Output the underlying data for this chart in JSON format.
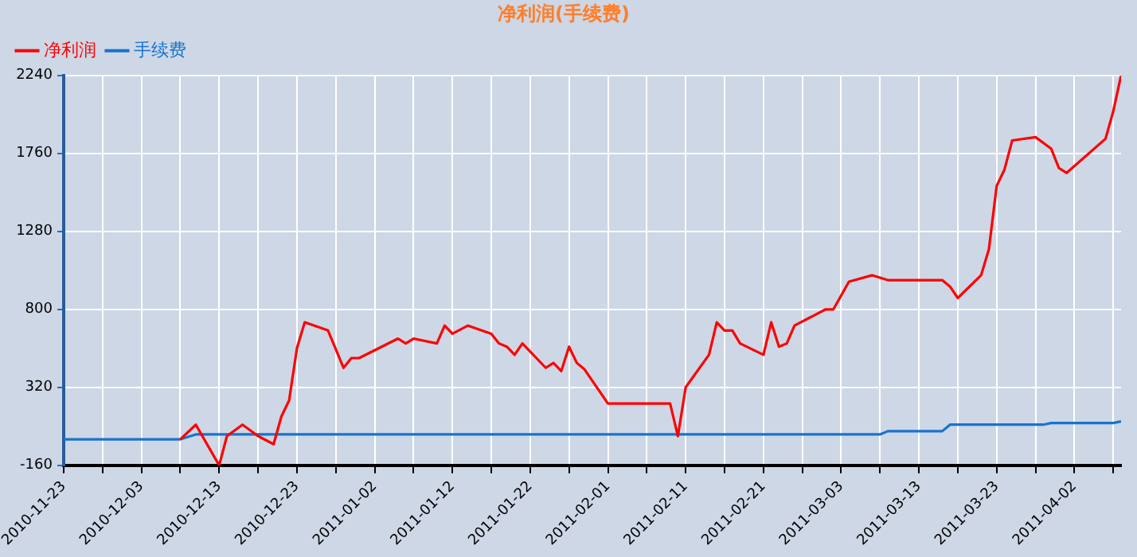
{
  "chart_data": {
    "type": "line",
    "title": "净利润(手续费)",
    "legend": "top left",
    "grid": true,
    "marker": "none",
    "line_style": "solid",
    "xlim": [
      "2010-11-23",
      "2011-04-08"
    ],
    "xticks": [
      {
        "value": "2010-11-23",
        "label": "2010-11-23"
      },
      {
        "value": "2010-11-28",
        "label": null
      },
      {
        "value": "2010-12-03",
        "label": "2010-12-03"
      },
      {
        "value": "2010-12-08",
        "label": null
      },
      {
        "value": "2010-12-13",
        "label": "2010-12-13"
      },
      {
        "value": "2010-12-18",
        "label": null
      },
      {
        "value": "2010-12-23",
        "label": "2010-12-23"
      },
      {
        "value": "2010-12-28",
        "label": null
      },
      {
        "value": "2011-01-02",
        "label": "2011-01-02"
      },
      {
        "value": "2011-01-07",
        "label": null
      },
      {
        "value": "2011-01-12",
        "label": "2011-01-12"
      },
      {
        "value": "2011-01-17",
        "label": null
      },
      {
        "value": "2011-01-22",
        "label": "2011-01-22"
      },
      {
        "value": "2011-01-27",
        "label": null
      },
      {
        "value": "2011-02-01",
        "label": "2011-02-01"
      },
      {
        "value": "2011-02-06",
        "label": null
      },
      {
        "value": "2011-02-11",
        "label": "2011-02-11"
      },
      {
        "value": "2011-02-16",
        "label": null
      },
      {
        "value": "2011-02-21",
        "label": "2011-02-21"
      },
      {
        "value": "2011-02-26",
        "label": null
      },
      {
        "value": "2011-03-03",
        "label": "2011-03-03"
      },
      {
        "value": "2011-03-08",
        "label": null
      },
      {
        "value": "2011-03-13",
        "label": "2011-03-13"
      },
      {
        "value": "2011-03-18",
        "label": null
      },
      {
        "value": "2011-03-23",
        "label": "2011-03-23"
      },
      {
        "value": "2011-03-28",
        "label": null
      },
      {
        "value": "2011-04-02",
        "label": "2011-04-02"
      },
      {
        "value": "2011-04-07",
        "label": null
      }
    ],
    "ylim": [
      -160,
      2240
    ],
    "yticks": [
      -160,
      320,
      800,
      1280,
      1760,
      2240
    ],
    "series": [
      {
        "name": "净利润",
        "color": "#ff0000",
        "x": [
          "2010-12-08",
          "2010-12-10",
          "2010-12-13",
          "2010-12-14",
          "2010-12-16",
          "2010-12-18",
          "2010-12-20",
          "2010-12-21",
          "2010-12-22",
          "2010-12-23",
          "2010-12-24",
          "2010-12-27",
          "2010-12-29",
          "2010-12-30",
          "2010-12-31",
          "2011-01-05",
          "2011-01-06",
          "2011-01-07",
          "2011-01-10",
          "2011-01-11",
          "2011-01-12",
          "2011-01-14",
          "2011-01-17",
          "2011-01-18",
          "2011-01-19",
          "2011-01-20",
          "2011-01-21",
          "2011-01-24",
          "2011-01-25",
          "2011-01-26",
          "2011-01-27",
          "2011-01-28",
          "2011-01-29",
          "2011-02-01",
          "2011-02-09",
          "2011-02-10",
          "2011-02-11",
          "2011-02-14",
          "2011-02-15",
          "2011-02-16",
          "2011-02-17",
          "2011-02-18",
          "2011-02-21",
          "2011-02-22",
          "2011-02-23",
          "2011-02-24",
          "2011-02-25",
          "2011-03-01",
          "2011-03-02",
          "2011-03-04",
          "2011-03-07",
          "2011-03-09",
          "2011-03-16",
          "2011-03-17",
          "2011-03-18",
          "2011-03-21",
          "2011-03-22",
          "2011-03-23",
          "2011-03-24",
          "2011-03-25",
          "2011-03-28",
          "2011-03-30",
          "2011-03-31",
          "2011-04-01",
          "2011-04-06",
          "2011-04-07",
          "2011-04-08"
        ],
        "values": [
          0,
          90,
          -160,
          20,
          90,
          20,
          -30,
          140,
          240,
          560,
          720,
          670,
          440,
          500,
          500,
          620,
          590,
          620,
          590,
          700,
          650,
          700,
          650,
          590,
          570,
          520,
          590,
          440,
          470,
          420,
          570,
          470,
          430,
          220,
          220,
          20,
          320,
          520,
          720,
          670,
          670,
          590,
          520,
          720,
          570,
          590,
          700,
          800,
          800,
          970,
          1010,
          980,
          980,
          940,
          870,
          1010,
          1170,
          1560,
          1660,
          1840,
          1860,
          1790,
          1670,
          1640,
          1850,
          2020,
          2240
        ]
      },
      {
        "name": "手续费",
        "color": "#1874cd",
        "x": [
          "2010-11-23",
          "2010-12-08",
          "2010-12-10",
          "2011-03-08",
          "2011-03-09",
          "2011-03-16",
          "2011-03-17",
          "2011-03-29",
          "2011-03-30",
          "2011-04-07",
          "2011-04-08"
        ],
        "values": [
          0,
          0,
          30,
          30,
          50,
          50,
          90,
          90,
          100,
          100,
          110
        ]
      }
    ]
  }
}
